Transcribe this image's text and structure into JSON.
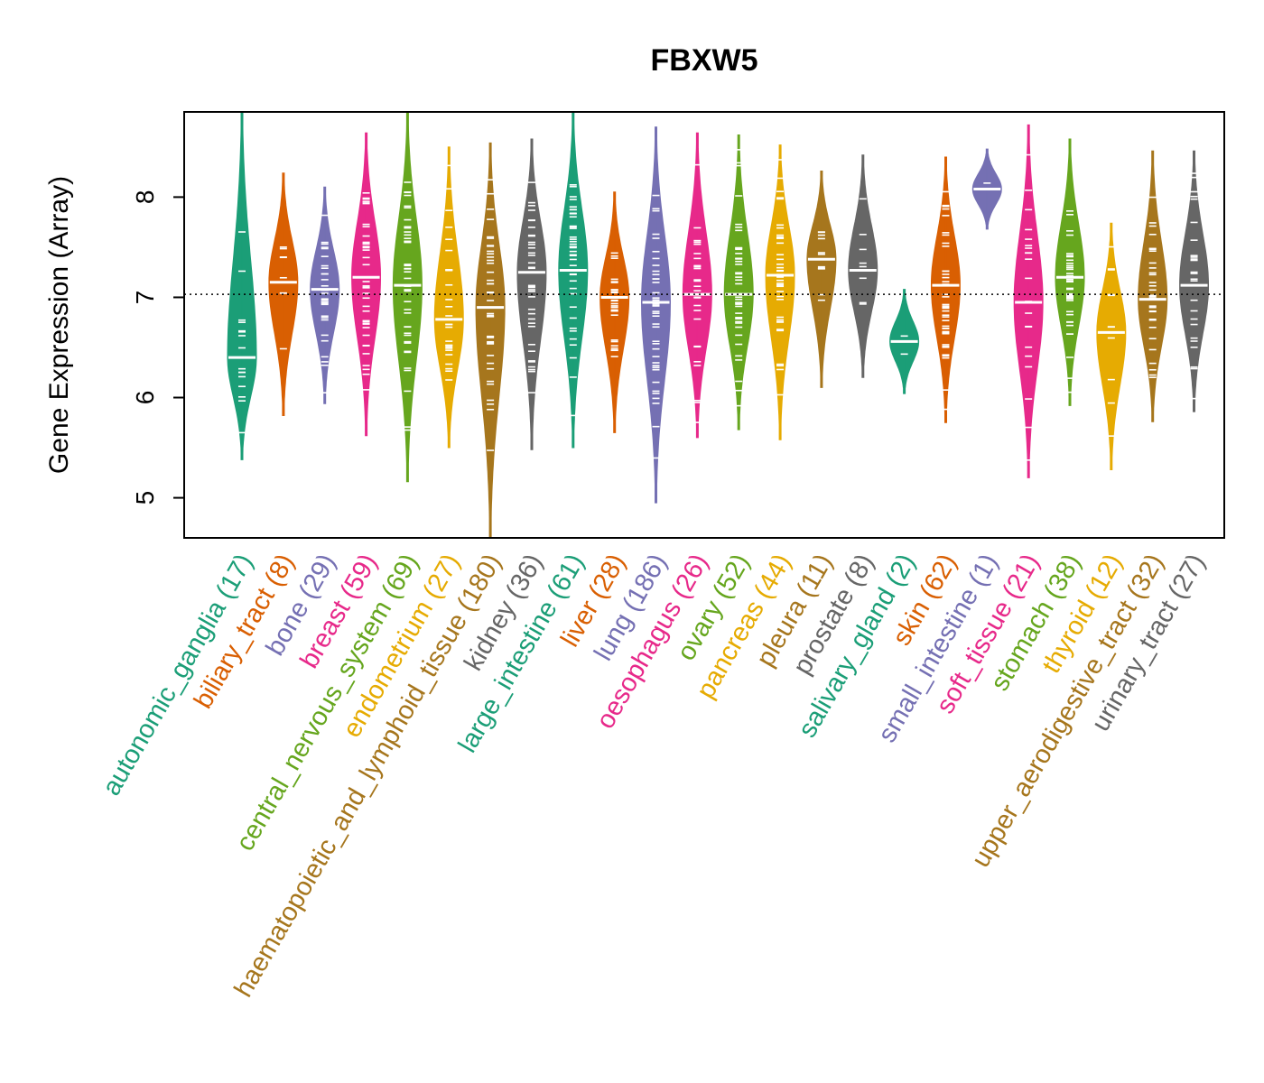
{
  "chart_data": {
    "type": "beanplot",
    "title": "FBXW5",
    "ylabel": "Gene Expression (Array)",
    "xlabel": "",
    "ylim": [
      4.6,
      8.85
    ],
    "yticks": [
      5,
      6,
      7,
      8
    ],
    "reference_line": 7.03,
    "categories": [
      {
        "label": "autonomic_ganglia (17)",
        "color": "#1B9E77",
        "min": 5.38,
        "max": 8.92,
        "median": 6.4
      },
      {
        "label": "biliary_tract (8)",
        "color": "#D95F02",
        "min": 5.82,
        "max": 8.24,
        "median": 7.15
      },
      {
        "label": "bone (29)",
        "color": "#7570B3",
        "min": 5.94,
        "max": 8.1,
        "median": 7.08
      },
      {
        "label": "breast (59)",
        "color": "#E7298A",
        "min": 5.62,
        "max": 8.64,
        "median": 7.2
      },
      {
        "label": "central_nervous_system (69)",
        "color": "#66A61E",
        "min": 5.16,
        "max": 8.85,
        "median": 7.12
      },
      {
        "label": "endometrium (27)",
        "color": "#E6AB02",
        "min": 5.5,
        "max": 8.5,
        "median": 6.78
      },
      {
        "label": "haematopoietic_and_lymphoid_tissue (180)",
        "color": "#A6761D",
        "min": 4.6,
        "max": 8.54,
        "median": 6.9
      },
      {
        "label": "kidney (36)",
        "color": "#666666",
        "min": 5.48,
        "max": 8.58,
        "median": 7.25
      },
      {
        "label": "large_intestine (61)",
        "color": "#1B9E77",
        "min": 5.5,
        "max": 8.85,
        "median": 7.27
      },
      {
        "label": "liver (28)",
        "color": "#D95F02",
        "min": 5.65,
        "max": 8.05,
        "median": 7.0
      },
      {
        "label": "lung (186)",
        "color": "#7570B3",
        "min": 4.95,
        "max": 8.7,
        "median": 6.95
      },
      {
        "label": "oesophagus (26)",
        "color": "#E7298A",
        "min": 5.6,
        "max": 8.64,
        "median": 7.03
      },
      {
        "label": "ovary (52)",
        "color": "#66A61E",
        "min": 5.68,
        "max": 8.62,
        "median": 7.03
      },
      {
        "label": "pancreas (44)",
        "color": "#E6AB02",
        "min": 5.58,
        "max": 8.52,
        "median": 7.22
      },
      {
        "label": "pleura (11)",
        "color": "#A6761D",
        "min": 6.1,
        "max": 8.26,
        "median": 7.38
      },
      {
        "label": "prostate (8)",
        "color": "#666666",
        "min": 6.2,
        "max": 8.42,
        "median": 7.27
      },
      {
        "label": "salivary_gland (2)",
        "color": "#1B9E77",
        "min": 6.04,
        "max": 7.08,
        "median": 6.56
      },
      {
        "label": "skin (62)",
        "color": "#D95F02",
        "min": 5.75,
        "max": 8.4,
        "median": 7.12
      },
      {
        "label": "small_intestine (1)",
        "color": "#7570B3",
        "min": 7.68,
        "max": 8.48,
        "median": 8.08
      },
      {
        "label": "soft_tissue (21)",
        "color": "#E7298A",
        "min": 5.2,
        "max": 8.72,
        "median": 6.95
      },
      {
        "label": "stomach (38)",
        "color": "#66A61E",
        "min": 5.92,
        "max": 8.58,
        "median": 7.2
      },
      {
        "label": "thyroid (12)",
        "color": "#E6AB02",
        "min": 5.28,
        "max": 7.74,
        "median": 6.65
      },
      {
        "label": "upper_aerodigestive_tract (32)",
        "color": "#A6761D",
        "min": 5.76,
        "max": 8.46,
        "median": 6.98
      },
      {
        "label": "urinary_tract (27)",
        "color": "#666666",
        "min": 5.86,
        "max": 8.46,
        "median": 7.12
      }
    ]
  }
}
